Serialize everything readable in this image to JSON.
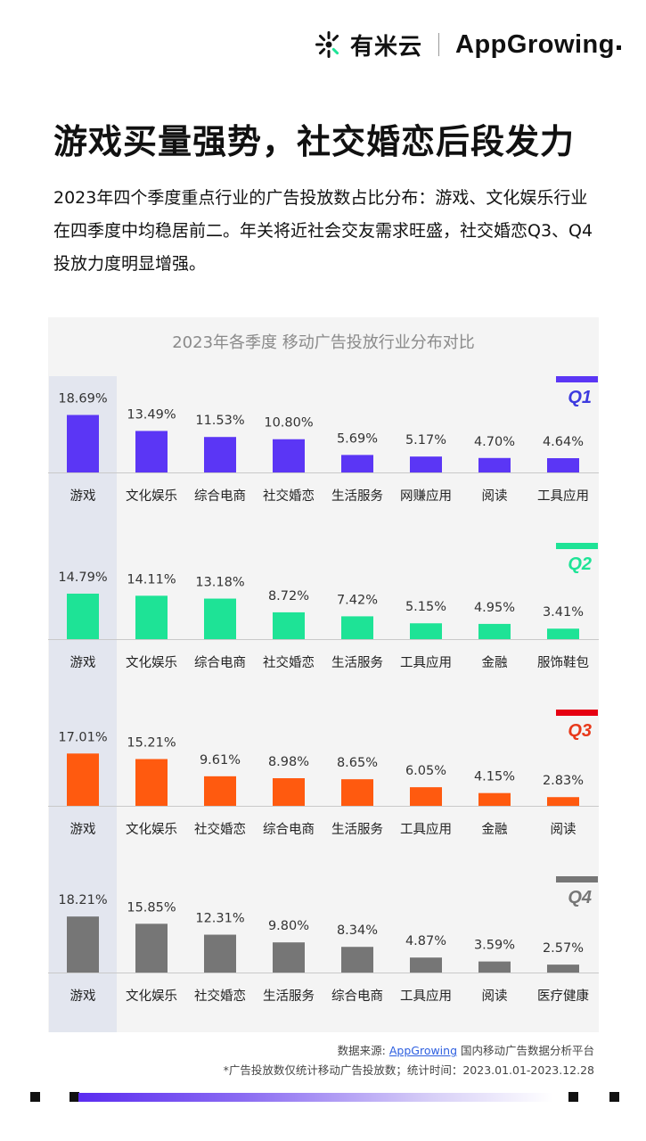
{
  "brand": {
    "cn_name": "有米云",
    "en_name": "AppGrowing"
  },
  "headline": "游戏买量强势，社交婚恋后段发力",
  "description": "2023年四个季度重点行业的广告投放数占比分布：游戏、文化娱乐行业在四季度中均稳居前二。年关将近社会交友需求旺盛，社交婚恋Q3、Q4投放力度明显增强。",
  "chart_data": {
    "type": "bar",
    "title": "2023年各季度 移动广告投放行业分布对比",
    "unit": "%",
    "panels": [
      {
        "name": "Q1",
        "color": "#5b36f5",
        "categories": [
          "游戏",
          "文化娱乐",
          "综合电商",
          "社交婚恋",
          "生活服务",
          "网赚应用",
          "阅读",
          "工具应用"
        ],
        "values": [
          18.69,
          13.49,
          11.53,
          10.8,
          5.69,
          5.17,
          4.7,
          4.64
        ],
        "labels": [
          "18.69%",
          "13.49%",
          "11.53%",
          "10.80%",
          "5.69%",
          "5.17%",
          "4.70%",
          "4.64%"
        ]
      },
      {
        "name": "Q2",
        "color": "#1ee396",
        "categories": [
          "游戏",
          "文化娱乐",
          "综合电商",
          "社交婚恋",
          "生活服务",
          "工具应用",
          "金融",
          "服饰鞋包"
        ],
        "values": [
          14.79,
          14.11,
          13.18,
          8.72,
          7.42,
          5.15,
          4.95,
          3.41
        ],
        "labels": [
          "14.79%",
          "14.11%",
          "13.18%",
          "8.72%",
          "7.42%",
          "5.15%",
          "4.95%",
          "3.41%"
        ]
      },
      {
        "name": "Q3",
        "color": "#ff5a0f",
        "categories": [
          "游戏",
          "文化娱乐",
          "社交婚恋",
          "综合电商",
          "生活服务",
          "工具应用",
          "金融",
          "阅读"
        ],
        "values": [
          17.01,
          15.21,
          9.61,
          8.98,
          8.65,
          6.05,
          4.15,
          2.83
        ],
        "labels": [
          "17.01%",
          "15.21%",
          "9.61%",
          "8.98%",
          "8.65%",
          "6.05%",
          "4.15%",
          "2.83%"
        ]
      },
      {
        "name": "Q4",
        "color": "#767676",
        "categories": [
          "游戏",
          "文化娱乐",
          "社交婚恋",
          "生活服务",
          "综合电商",
          "工具应用",
          "阅读",
          "医疗健康"
        ],
        "values": [
          18.21,
          15.85,
          12.31,
          9.8,
          8.34,
          4.87,
          3.59,
          2.57
        ],
        "labels": [
          "18.21%",
          "15.85%",
          "12.31%",
          "9.80%",
          "8.34%",
          "4.87%",
          "3.59%",
          "2.57%"
        ]
      }
    ],
    "q_label_colors": {
      "Q1": "#3d3adf",
      "Q2": "#1ee396",
      "Q3": "#e8391a",
      "Q4": "#767676"
    },
    "q_bar_colors": {
      "Q1": "#5b36f5",
      "Q2": "#1ee396",
      "Q3": "#e60012",
      "Q4": "#767676"
    },
    "highlight_column": "游戏"
  },
  "footer": {
    "source_prefix": "数据来源: ",
    "source_link": "AppGrowing",
    "source_suffix": " 国内移动广告数据分析平台",
    "note": "*广告投放数仅统计移动广告投放数；统计时间：2023.01.01-2023.12.28"
  },
  "colors": {
    "accent": "#5b2cf0",
    "highlight_bg": "#e3e6ef",
    "background": "#f4f4f4"
  }
}
